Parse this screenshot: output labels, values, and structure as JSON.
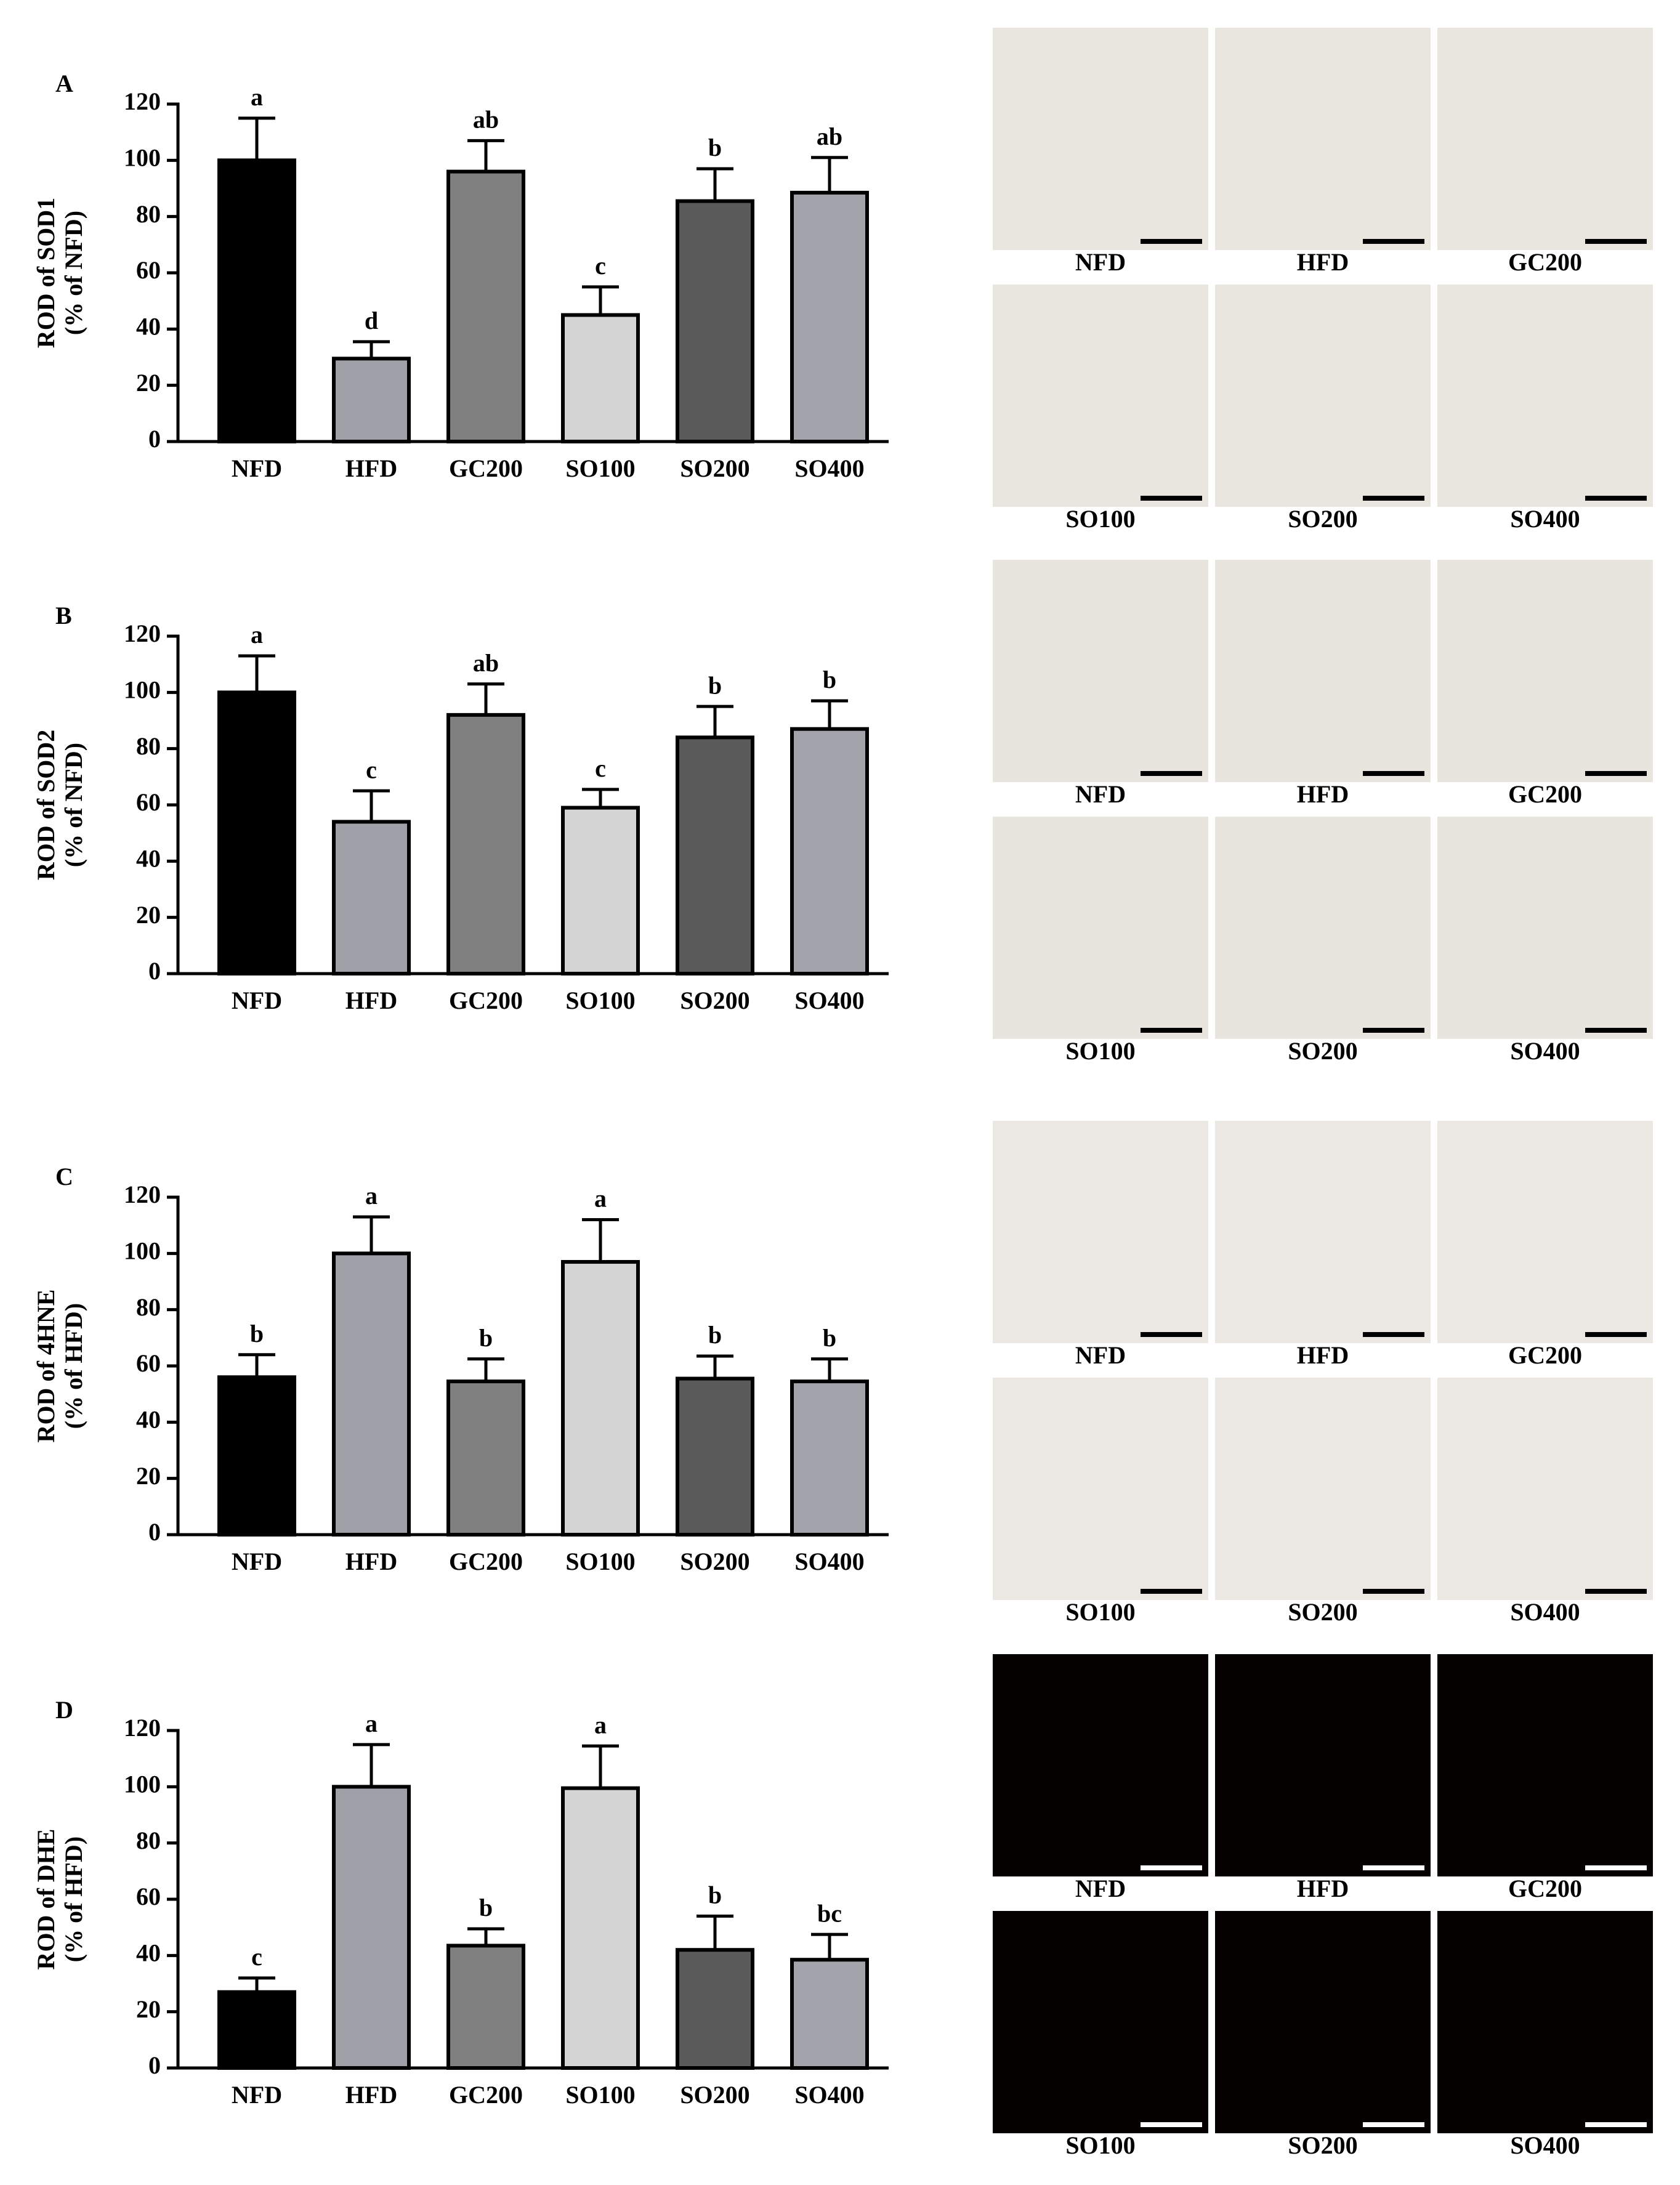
{
  "chart_data": [
    {
      "type": "bar",
      "panel": "A",
      "ylabel": [
        "ROD of SOD1",
        "(% of NFD)"
      ],
      "categories": [
        "NFD",
        "HFD",
        "GC200",
        "SO100",
        "SO200",
        "SO400"
      ],
      "values": [
        100,
        29.5,
        96,
        45,
        85.5,
        88.5
      ],
      "errors": [
        15,
        6,
        11,
        10,
        11.5,
        12.5
      ],
      "letters": [
        "a",
        "d",
        "ab",
        "c",
        "b",
        "ab"
      ],
      "colors": [
        "#000000",
        "#a0a0a8",
        "#808080",
        "#d4d4d4",
        "#5a5a5a",
        "#a3a3ab"
      ],
      "ylim": [
        0,
        120
      ],
      "yticks": [
        0,
        20,
        40,
        60,
        80,
        100,
        120
      ],
      "image_labels": [
        "NFD",
        "HFD",
        "GC200",
        "SO100",
        "SO200",
        "SO400"
      ],
      "image_colors": {
        "background": "#e9e5df",
        "stroke": "#b07a45",
        "scale_bar": "#000000"
      }
    },
    {
      "type": "bar",
      "panel": "B",
      "ylabel": [
        "ROD of SOD2",
        "(% of NFD)"
      ],
      "categories": [
        "NFD",
        "HFD",
        "GC200",
        "SO100",
        "SO200",
        "SO400"
      ],
      "values": [
        100,
        54,
        92,
        59,
        84,
        87
      ],
      "errors": [
        13,
        11,
        11,
        6.5,
        11,
        10
      ],
      "letters": [
        "a",
        "c",
        "ab",
        "c",
        "b",
        "b"
      ],
      "colors": [
        "#000000",
        "#a0a0a8",
        "#808080",
        "#d4d4d4",
        "#5a5a5a",
        "#a3a3ab"
      ],
      "ylim": [
        0,
        120
      ],
      "yticks": [
        0,
        20,
        40,
        60,
        80,
        100,
        120
      ],
      "image_labels": [
        "NFD",
        "HFD",
        "GC200",
        "SO100",
        "SO200",
        "SO400"
      ],
      "image_colors": {
        "background": "#e8e4de",
        "stroke": "#a86f3a",
        "scale_bar": "#000000"
      }
    },
    {
      "type": "bar",
      "panel": "C",
      "ylabel": [
        "ROD of 4HNE",
        "(% of HFD)"
      ],
      "categories": [
        "NFD",
        "HFD",
        "GC200",
        "SO100",
        "SO200",
        "SO400"
      ],
      "values": [
        56,
        100,
        54.5,
        97,
        55.5,
        54.5
      ],
      "errors": [
        8,
        13,
        8,
        15,
        8,
        8
      ],
      "letters": [
        "b",
        "a",
        "b",
        "a",
        "b",
        "b"
      ],
      "colors": [
        "#000000",
        "#a0a0a8",
        "#808080",
        "#d4d4d4",
        "#5a5a5a",
        "#a3a3ab"
      ],
      "ylim": [
        0,
        120
      ],
      "yticks": [
        0,
        20,
        40,
        60,
        80,
        100,
        120
      ],
      "image_labels": [
        "NFD",
        "HFD",
        "GC200",
        "SO100",
        "SO200",
        "SO400"
      ],
      "image_colors": {
        "background": "#ebe8e4",
        "stroke": "#c9a27c",
        "scale_bar": "#000000"
      }
    },
    {
      "type": "bar",
      "panel": "D",
      "ylabel": [
        "ROD of DHE",
        "(% of HFD)"
      ],
      "categories": [
        "NFD",
        "HFD",
        "GC200",
        "SO100",
        "SO200",
        "SO400"
      ],
      "values": [
        27,
        100,
        43.5,
        99.5,
        42,
        38.5
      ],
      "errors": [
        5,
        15,
        6,
        15,
        12,
        9
      ],
      "letters": [
        "c",
        "a",
        "b",
        "a",
        "b",
        "bc"
      ],
      "colors": [
        "#000000",
        "#a0a0a8",
        "#808080",
        "#d4d4d4",
        "#5a5a5a",
        "#a3a3ab"
      ],
      "ylim": [
        0,
        120
      ],
      "yticks": [
        0,
        20,
        40,
        60,
        80,
        100,
        120
      ],
      "image_labels": [
        "NFD",
        "HFD",
        "GC200",
        "SO100",
        "SO200",
        "SO400"
      ],
      "image_colors": {
        "background": "#050000",
        "stroke": "#e01010",
        "scale_bar": "#ffffff"
      }
    }
  ]
}
